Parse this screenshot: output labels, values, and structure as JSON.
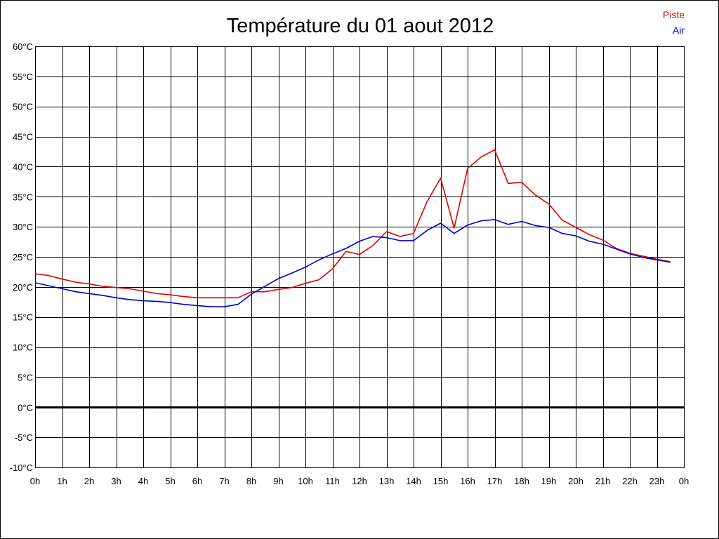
{
  "chart_data": {
    "type": "line",
    "title": "Température du 01 aout 2012",
    "xlabel": "",
    "ylabel": "",
    "x_unit": "hours",
    "xlim": [
      0,
      24
    ],
    "ylim": [
      -10,
      60
    ],
    "x_ticks": [
      0,
      1,
      2,
      3,
      4,
      5,
      6,
      7,
      8,
      9,
      10,
      11,
      12,
      13,
      14,
      15,
      16,
      17,
      18,
      19,
      20,
      21,
      22,
      23,
      24
    ],
    "x_tick_labels": [
      "0h",
      "1h",
      "2h",
      "3h",
      "4h",
      "5h",
      "6h",
      "7h",
      "8h",
      "9h",
      "10h",
      "11h",
      "12h",
      "13h",
      "14h",
      "15h",
      "16h",
      "17h",
      "18h",
      "19h",
      "20h",
      "21h",
      "22h",
      "23h",
      "0h"
    ],
    "y_ticks": [
      -10,
      -5,
      0,
      5,
      10,
      15,
      20,
      25,
      30,
      35,
      40,
      45,
      50,
      55,
      60
    ],
    "y_tick_labels": [
      "-10°C",
      "-5°C",
      "0°C",
      "5°C",
      "10°C",
      "15°C",
      "20°C",
      "25°C",
      "30°C",
      "35°C",
      "40°C",
      "45°C",
      "50°C",
      "55°C",
      "60°C"
    ],
    "grid": true,
    "zero_line": true,
    "legend_position": "top-right",
    "x": [
      0,
      0.5,
      1,
      1.5,
      2,
      2.5,
      3,
      3.5,
      4,
      4.5,
      5,
      5.5,
      6,
      6.5,
      7,
      7.5,
      8,
      8.5,
      9,
      9.5,
      10,
      10.5,
      11,
      11.5,
      12,
      12.5,
      13,
      13.5,
      14,
      14.5,
      15,
      15.5,
      16,
      16.5,
      17,
      17.5,
      18,
      18.5,
      19,
      19.5,
      20,
      20.5,
      21,
      21.5,
      22,
      22.5,
      23,
      23.5
    ],
    "series": [
      {
        "name": "Piste",
        "color": "#dd0000",
        "values": [
          22.2,
          21.9,
          21.3,
          20.8,
          20.5,
          20.1,
          19.9,
          19.7,
          19.3,
          18.9,
          18.7,
          18.4,
          18.2,
          18.2,
          18.2,
          18.2,
          19.2,
          19.2,
          19.6,
          19.9,
          20.6,
          21.2,
          23.0,
          25.9,
          25.4,
          26.9,
          29.2,
          28.4,
          28.9,
          34.2,
          38.1,
          29.8,
          39.7,
          41.6,
          42.8,
          37.2,
          37.4,
          35.3,
          33.8,
          31.1,
          29.9,
          28.7,
          27.8,
          26.4,
          25.6,
          25.1,
          24.6,
          24.2
        ]
      },
      {
        "name": "Air",
        "color": "#0000cc",
        "values": [
          20.7,
          20.2,
          19.7,
          19.2,
          18.9,
          18.6,
          18.2,
          17.9,
          17.7,
          17.6,
          17.4,
          17.1,
          16.9,
          16.7,
          16.7,
          17.1,
          18.8,
          20.1,
          21.4,
          22.3,
          23.3,
          24.5,
          25.5,
          26.4,
          27.6,
          28.4,
          28.2,
          27.7,
          27.7,
          29.4,
          30.6,
          28.9,
          30.3,
          31.0,
          31.2,
          30.4,
          30.9,
          30.2,
          29.9,
          28.9,
          28.5,
          27.6,
          27.1,
          26.3,
          25.5,
          24.9,
          24.5,
          24.1
        ]
      }
    ]
  }
}
